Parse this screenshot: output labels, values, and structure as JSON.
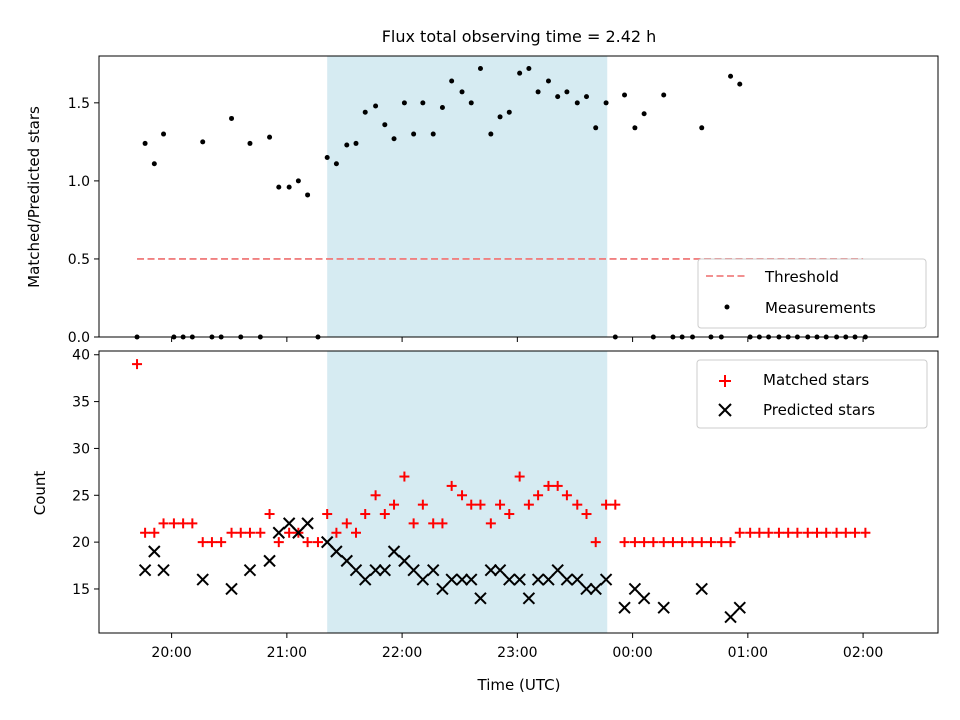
{
  "chart_data": [
    {
      "type": "scatter",
      "title": "Flux total observing time = 2.42 h",
      "xlabel": "",
      "ylabel": "Matched/Predicted stars",
      "ylim": [
        0,
        1.8
      ],
      "yticks": [
        "0.0",
        "0.5",
        "1.0",
        "1.5"
      ],
      "xlim_hours": [
        19.37,
        26.65
      ],
      "shaded_region_hours": [
        21.35,
        23.78
      ],
      "legend_position": "lower right",
      "threshold": {
        "name": "Threshold",
        "value": 0.5,
        "x_hours": [
          19.7,
          26.0
        ],
        "color": "#f08080"
      },
      "series": [
        {
          "name": "Measurements",
          "color": "#000000",
          "points": [
            [
              19.7,
              0
            ],
            [
              19.77,
              1.24
            ],
            [
              19.85,
              1.11
            ],
            [
              19.93,
              1.3
            ],
            [
              20.02,
              0
            ],
            [
              20.1,
              0
            ],
            [
              20.18,
              0
            ],
            [
              20.27,
              1.25
            ],
            [
              20.35,
              0
            ],
            [
              20.43,
              0
            ],
            [
              20.52,
              1.4
            ],
            [
              20.6,
              0
            ],
            [
              20.68,
              1.24
            ],
            [
              20.77,
              0
            ],
            [
              20.85,
              1.28
            ],
            [
              20.93,
              0.96
            ],
            [
              21.02,
              0.96
            ],
            [
              21.1,
              1.0
            ],
            [
              21.18,
              0.91
            ],
            [
              21.27,
              0
            ],
            [
              21.35,
              1.15
            ],
            [
              21.43,
              1.11
            ],
            [
              21.52,
              1.23
            ],
            [
              21.6,
              1.24
            ],
            [
              21.68,
              1.44
            ],
            [
              21.77,
              1.48
            ],
            [
              21.85,
              1.36
            ],
            [
              21.93,
              1.27
            ],
            [
              22.02,
              1.5
            ],
            [
              22.1,
              1.3
            ],
            [
              22.18,
              1.5
            ],
            [
              22.27,
              1.3
            ],
            [
              22.35,
              1.47
            ],
            [
              22.43,
              1.64
            ],
            [
              22.52,
              1.57
            ],
            [
              22.6,
              1.5
            ],
            [
              22.68,
              1.72
            ],
            [
              22.77,
              1.3
            ],
            [
              22.85,
              1.41
            ],
            [
              22.93,
              1.44
            ],
            [
              23.02,
              1.69
            ],
            [
              23.1,
              1.72
            ],
            [
              23.18,
              1.57
            ],
            [
              23.27,
              1.64
            ],
            [
              23.35,
              1.54
            ],
            [
              23.43,
              1.57
            ],
            [
              23.52,
              1.5
            ],
            [
              23.6,
              1.54
            ],
            [
              23.68,
              1.34
            ],
            [
              23.77,
              1.5
            ],
            [
              23.85,
              0
            ],
            [
              23.93,
              1.55
            ],
            [
              24.02,
              1.34
            ],
            [
              24.1,
              1.43
            ],
            [
              24.18,
              0
            ],
            [
              24.27,
              1.55
            ],
            [
              24.35,
              0
            ],
            [
              24.43,
              0
            ],
            [
              24.52,
              0
            ],
            [
              24.6,
              1.34
            ],
            [
              24.68,
              0
            ],
            [
              24.77,
              0
            ],
            [
              24.85,
              1.67
            ],
            [
              24.93,
              1.62
            ],
            [
              25.02,
              0
            ],
            [
              25.1,
              0
            ],
            [
              25.18,
              0
            ],
            [
              25.27,
              0
            ],
            [
              25.35,
              0
            ],
            [
              25.43,
              0
            ],
            [
              25.52,
              0
            ],
            [
              25.6,
              0
            ],
            [
              25.68,
              0
            ],
            [
              25.77,
              0
            ],
            [
              25.85,
              0
            ],
            [
              25.93,
              0
            ],
            [
              26.02,
              0
            ]
          ]
        }
      ]
    },
    {
      "type": "scatter",
      "title": "",
      "xlabel": "Time (UTC)",
      "ylabel": "Count",
      "ylim": [
        10.3,
        40.4
      ],
      "yticks": [
        "15",
        "20",
        "25",
        "30",
        "35",
        "40"
      ],
      "xlim_hours": [
        19.37,
        26.65
      ],
      "xticks": [
        {
          "hour": 20,
          "label": "20:00"
        },
        {
          "hour": 21,
          "label": "21:00"
        },
        {
          "hour": 22,
          "label": "22:00"
        },
        {
          "hour": 23,
          "label": "23:00"
        },
        {
          "hour": 24,
          "label": "00:00"
        },
        {
          "hour": 25,
          "label": "01:00"
        },
        {
          "hour": 26,
          "label": "02:00"
        }
      ],
      "shaded_region_hours": [
        21.35,
        23.78
      ],
      "legend_position": "upper right",
      "series": [
        {
          "name": "Matched stars",
          "marker": "plus",
          "color": "#ff0000",
          "points": [
            [
              19.7,
              39
            ],
            [
              19.77,
              21
            ],
            [
              19.85,
              21
            ],
            [
              19.93,
              22
            ],
            [
              20.02,
              22
            ],
            [
              20.1,
              22
            ],
            [
              20.18,
              22
            ],
            [
              20.27,
              20
            ],
            [
              20.35,
              20
            ],
            [
              20.43,
              20
            ],
            [
              20.52,
              21
            ],
            [
              20.6,
              21
            ],
            [
              20.68,
              21
            ],
            [
              20.77,
              21
            ],
            [
              20.85,
              23
            ],
            [
              20.93,
              20
            ],
            [
              21.02,
              21
            ],
            [
              21.1,
              21
            ],
            [
              21.18,
              20
            ],
            [
              21.27,
              20
            ],
            [
              21.35,
              23
            ],
            [
              21.43,
              21
            ],
            [
              21.52,
              22
            ],
            [
              21.6,
              21
            ],
            [
              21.68,
              23
            ],
            [
              21.77,
              25
            ],
            [
              21.85,
              23
            ],
            [
              21.93,
              24
            ],
            [
              22.02,
              27
            ],
            [
              22.1,
              22
            ],
            [
              22.18,
              24
            ],
            [
              22.27,
              22
            ],
            [
              22.35,
              22
            ],
            [
              22.43,
              26
            ],
            [
              22.52,
              25
            ],
            [
              22.6,
              24
            ],
            [
              22.68,
              24
            ],
            [
              22.77,
              22
            ],
            [
              22.85,
              24
            ],
            [
              22.93,
              23
            ],
            [
              23.02,
              27
            ],
            [
              23.1,
              24
            ],
            [
              23.18,
              25
            ],
            [
              23.27,
              26
            ],
            [
              23.35,
              26
            ],
            [
              23.43,
              25
            ],
            [
              23.52,
              24
            ],
            [
              23.6,
              23
            ],
            [
              23.68,
              20
            ],
            [
              23.77,
              24
            ],
            [
              23.85,
              24
            ],
            [
              23.93,
              20
            ],
            [
              24.02,
              20
            ],
            [
              24.1,
              20
            ],
            [
              24.18,
              20
            ],
            [
              24.27,
              20
            ],
            [
              24.35,
              20
            ],
            [
              24.43,
              20
            ],
            [
              24.52,
              20
            ],
            [
              24.6,
              20
            ],
            [
              24.68,
              20
            ],
            [
              24.77,
              20
            ],
            [
              24.85,
              20
            ],
            [
              24.93,
              21
            ],
            [
              25.02,
              21
            ],
            [
              25.1,
              21
            ],
            [
              25.18,
              21
            ],
            [
              25.27,
              21
            ],
            [
              25.35,
              21
            ],
            [
              25.43,
              21
            ],
            [
              25.52,
              21
            ],
            [
              25.6,
              21
            ],
            [
              25.68,
              21
            ],
            [
              25.77,
              21
            ],
            [
              25.85,
              21
            ],
            [
              25.93,
              21
            ],
            [
              26.02,
              21
            ]
          ]
        },
        {
          "name": "Predicted stars",
          "marker": "x",
          "color": "#000000",
          "points": [
            [
              19.77,
              17
            ],
            [
              19.85,
              19
            ],
            [
              19.93,
              17
            ],
            [
              20.27,
              16
            ],
            [
              20.52,
              15
            ],
            [
              20.68,
              17
            ],
            [
              20.85,
              18
            ],
            [
              20.93,
              21
            ],
            [
              21.02,
              22
            ],
            [
              21.1,
              21
            ],
            [
              21.18,
              22
            ],
            [
              21.35,
              20
            ],
            [
              21.43,
              19
            ],
            [
              21.52,
              18
            ],
            [
              21.6,
              17
            ],
            [
              21.68,
              16
            ],
            [
              21.77,
              17
            ],
            [
              21.85,
              17
            ],
            [
              21.93,
              19
            ],
            [
              22.02,
              18
            ],
            [
              22.1,
              17
            ],
            [
              22.18,
              16
            ],
            [
              22.27,
              17
            ],
            [
              22.35,
              15
            ],
            [
              22.43,
              16
            ],
            [
              22.52,
              16
            ],
            [
              22.6,
              16
            ],
            [
              22.68,
              14
            ],
            [
              22.77,
              17
            ],
            [
              22.85,
              17
            ],
            [
              22.93,
              16
            ],
            [
              23.02,
              16
            ],
            [
              23.1,
              14
            ],
            [
              23.18,
              16
            ],
            [
              23.27,
              16
            ],
            [
              23.35,
              17
            ],
            [
              23.43,
              16
            ],
            [
              23.52,
              16
            ],
            [
              23.6,
              15
            ],
            [
              23.68,
              15
            ],
            [
              23.77,
              16
            ],
            [
              23.93,
              13
            ],
            [
              24.02,
              15
            ],
            [
              24.1,
              14
            ],
            [
              24.27,
              13
            ],
            [
              24.6,
              15
            ],
            [
              24.85,
              12
            ],
            [
              24.93,
              13
            ]
          ]
        }
      ]
    }
  ]
}
